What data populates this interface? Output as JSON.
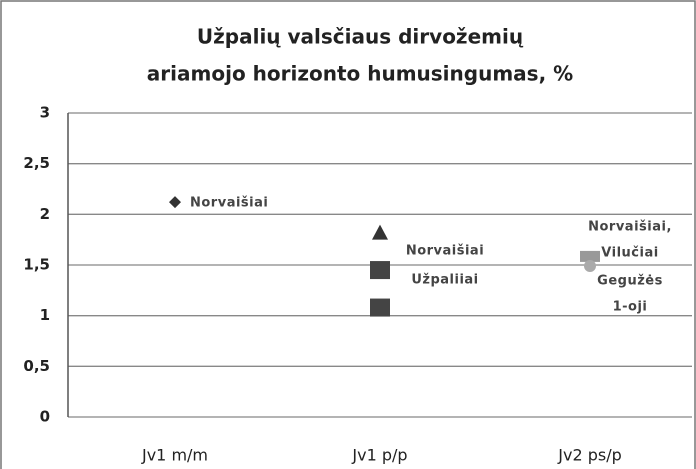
{
  "chart_data": {
    "type": "scatter",
    "title": [
      "Užpalių valsčiaus dirvožemių",
      "ariamojo horizonto humusingumas, %"
    ],
    "categories": [
      "Jv1 m/m",
      "Jv1 p/p",
      "Jv2 ps/p"
    ],
    "series": [
      {
        "marker": "diamond",
        "color": "#333333",
        "values": [
          2.12,
          null,
          null
        ]
      },
      {
        "marker": "triangle",
        "color": "#333333",
        "values": [
          null,
          1.82,
          null
        ]
      },
      {
        "marker": "square",
        "color": "#444444",
        "values": [
          null,
          1.45,
          null
        ]
      },
      {
        "marker": "square",
        "color": "#444444",
        "values": [
          null,
          1.08,
          null
        ]
      },
      {
        "marker": "dash",
        "color": "#999999",
        "values": [
          null,
          null,
          1.57
        ]
      },
      {
        "marker": "circle",
        "color": "#aaaaaa",
        "values": [
          null,
          null,
          1.49
        ]
      }
    ],
    "annotations": [
      "Norvaišiai",
      "Norvaišiai",
      "Užpaliiai",
      "Norvaišiai,",
      "Vilučiai",
      "Gegužės",
      "1-oji"
    ],
    "ylim": [
      0,
      3
    ],
    "yticks": [
      0,
      {
        "value": 0.5,
        "label": "0,5"
      },
      1,
      {
        "value": 1.5,
        "label": "1,5"
      },
      2,
      {
        "value": 2.5,
        "label": "2,5"
      },
      3
    ],
    "grid": true
  }
}
